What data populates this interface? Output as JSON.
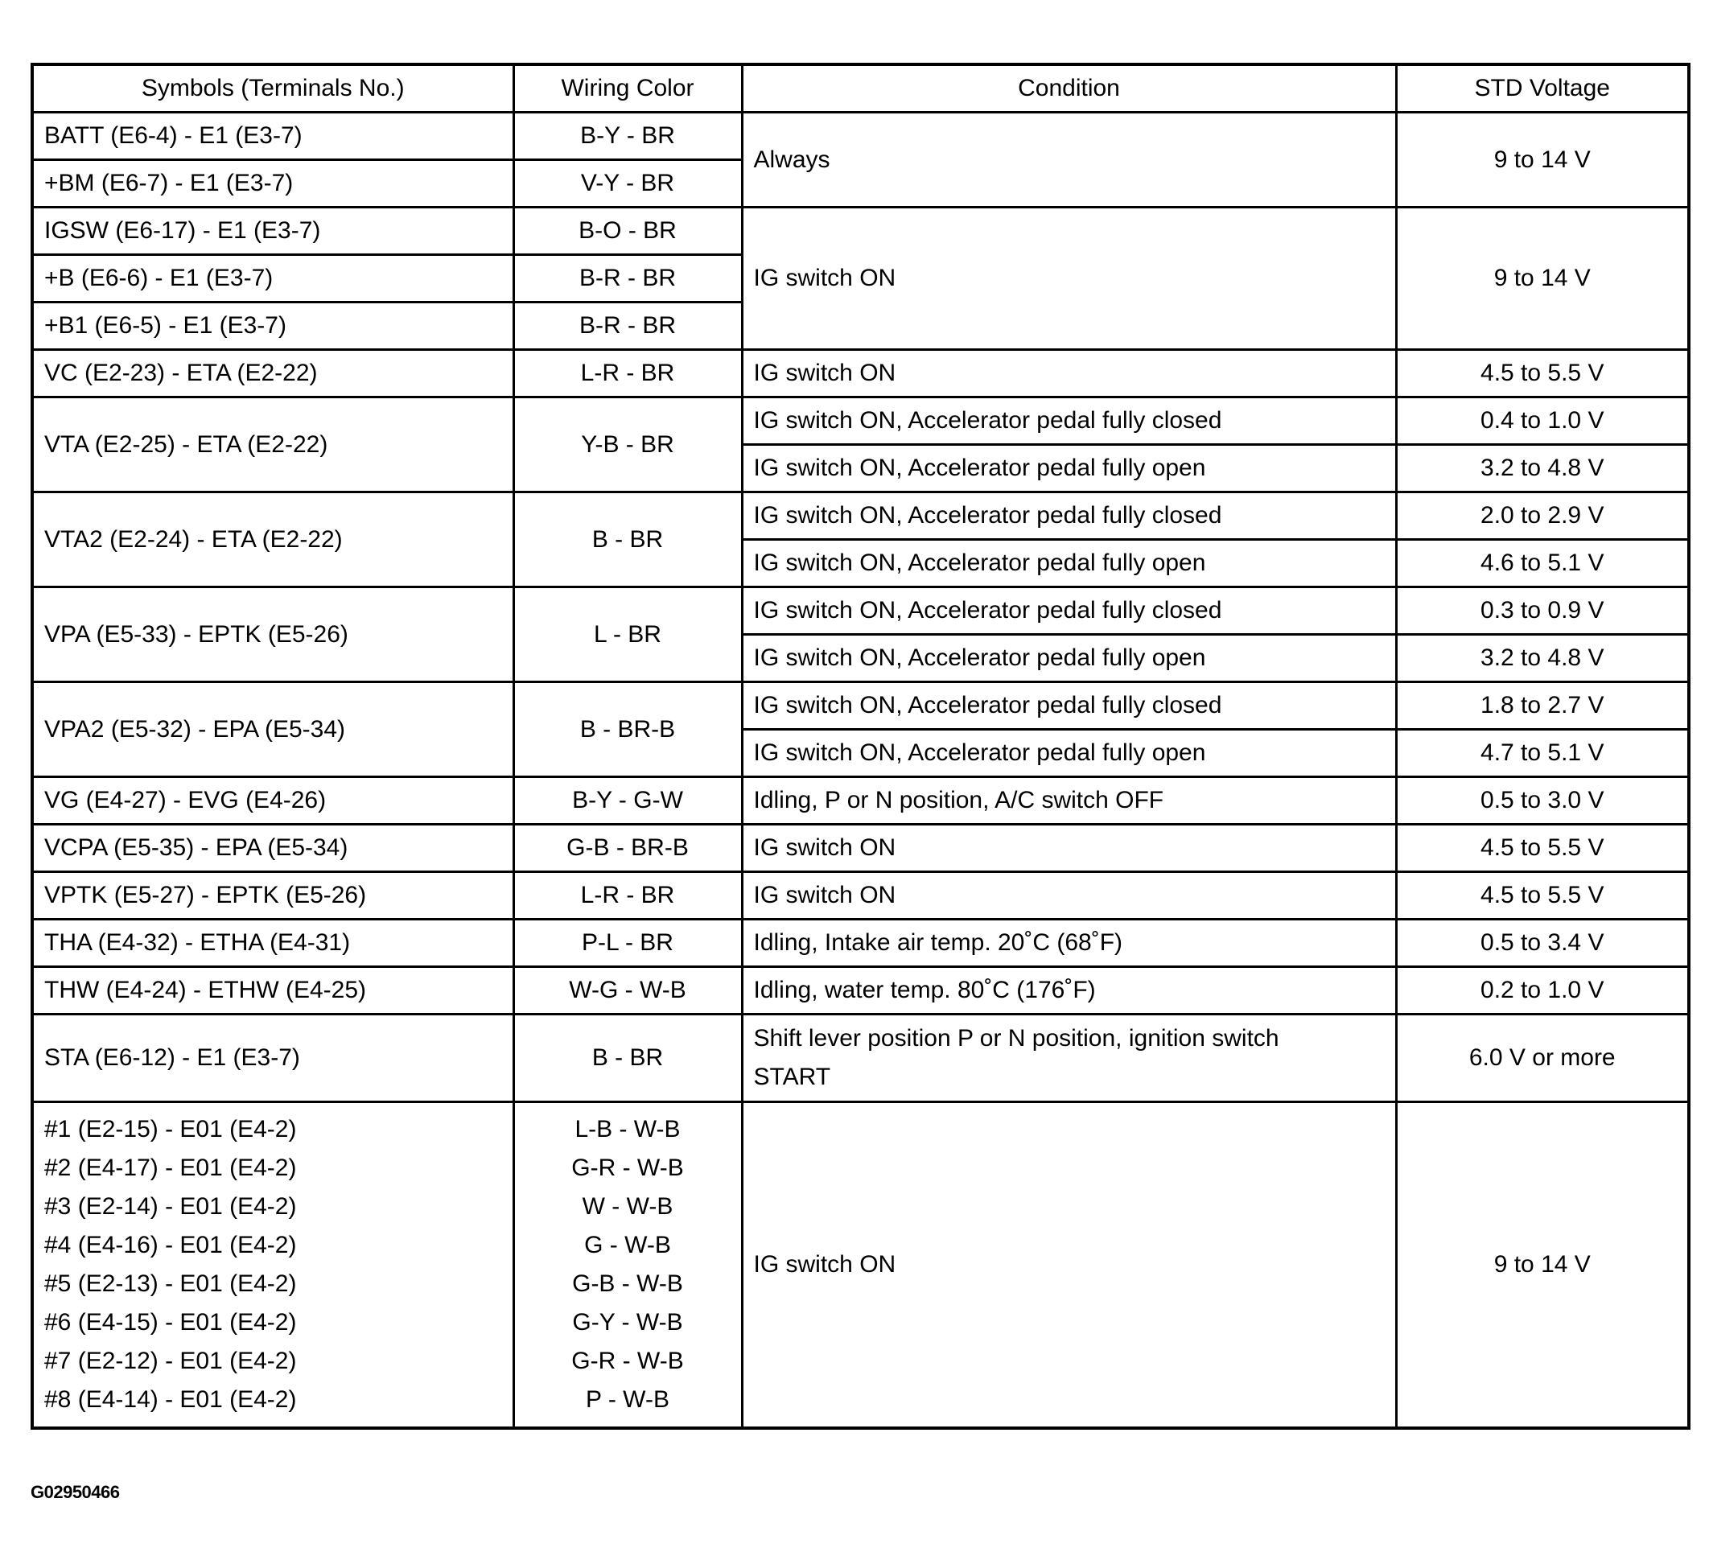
{
  "headers": [
    "Symbols (Terminals No.)",
    "Wiring Color",
    "Condition",
    "STD Voltage"
  ],
  "rows": {
    "batt": {
      "symbol": "BATT (E6-4) - E1 (E3-7)",
      "color": "B-Y  - BR"
    },
    "bm": {
      "symbol": "+BM (E6-7) - E1 (E3-7)",
      "color": "V-Y  - BR"
    },
    "always": {
      "condition": "Always",
      "voltage": "9 to 14 V"
    },
    "igsw": {
      "symbol": "IGSW (E6-17) - E1 (E3-7)",
      "color": "B-O  - BR"
    },
    "b": {
      "symbol": "+B (E6-6) - E1 (E3-7)",
      "color": "B-R  - BR"
    },
    "b1": {
      "symbol": "+B1 (E6-5) - E1 (E3-7)",
      "color": "B-R  - BR"
    },
    "ig_group": {
      "condition": "IG switch ON",
      "voltage": "9 to 14 V"
    },
    "vc": {
      "symbol": "VC (E2-23) - ETA (E2-22)",
      "color": "L-R  - BR",
      "condition": "IG switch ON",
      "voltage": "4.5 to 5.5 V"
    },
    "vta": {
      "symbol": "VTA (E2-25) - ETA (E2-22)",
      "color": "Y-B  - BR",
      "closed": "IG switch ON, Accelerator pedal fully closed",
      "closed_v": "0.4 to 1.0 V",
      "open": "IG switch ON, Accelerator pedal fully open",
      "open_v": "3.2 to 4.8 V"
    },
    "vta2": {
      "symbol": "VTA2 (E2-24) - ETA (E2-22)",
      "color": "B - BR",
      "closed": "IG switch ON, Accelerator pedal fully closed",
      "closed_v": "2.0 to 2.9 V",
      "open": "IG switch ON, Accelerator pedal fully open",
      "open_v": "4.6 to 5.1 V"
    },
    "vpa": {
      "symbol": "VPA (E5-33) - EPTK (E5-26)",
      "color": "L - BR",
      "closed": "IG switch ON, Accelerator pedal fully closed",
      "closed_v": "0.3 to 0.9 V",
      "open": "IG switch ON, Accelerator pedal fully open",
      "open_v": "3.2 to 4.8 V"
    },
    "vpa2": {
      "symbol": "VPA2 (E5-32) - EPA (E5-34)",
      "color": "B  -  BR-B",
      "closed": "IG switch ON, Accelerator pedal fully closed",
      "closed_v": "1.8 to 2.7 V",
      "open": "IG switch ON, Accelerator pedal fully open",
      "open_v": "4.7 to 5.1 V"
    },
    "vg": {
      "symbol": "VG (E4-27) - EVG (E4-26)",
      "color": "B-Y  -  G-W",
      "condition": "Idling, P or N position, A/C switch OFF",
      "voltage": "0.5 to 3.0 V"
    },
    "vcpa": {
      "symbol": "VCPA (E5-35) - EPA (E5-34)",
      "color": "G-B  -  BR-B",
      "condition": "IG switch ON",
      "voltage": "4.5 to 5.5 V"
    },
    "vptk": {
      "symbol": "VPTK (E5-27) - EPTK (E5-26)",
      "color": "L-R  -  BR",
      "condition": "IG switch ON",
      "voltage": "4.5 to 5.5 V"
    },
    "tha": {
      "symbol": "THA (E4-32) - ETHA (E4-31)",
      "color": "P-L  - BR",
      "condition": "Idling, Intake air temp. 20˚C (68˚F)",
      "voltage": "0.5 to 3.4 V"
    },
    "thw": {
      "symbol": "THW (E4-24) - ETHW (E4-25)",
      "color": "W-G  - W-B",
      "condition": "Idling, water temp. 80˚C (176˚F)",
      "voltage": "0.2 to 1.0 V"
    },
    "sta": {
      "symbol": "STA (E6-12) - E1 (E3-7)",
      "color": "B - BR",
      "condition": "Shift lever position P or N position, ignition switch START",
      "voltage": "6.0 V or more"
    },
    "injectors": {
      "symbols": [
        "#1 (E2-15) - E01 (E4-2)",
        "#2 (E4-17) - E01 (E4-2)",
        "#3 (E2-14) - E01 (E4-2)",
        "#4 (E4-16) - E01 (E4-2)",
        "#5 (E2-13) - E01 (E4-2)",
        "#6 (E4-15) - E01 (E4-2)",
        "#7 (E2-12) - E01 (E4-2)",
        "#8 (E4-14) - E01 (E4-2)"
      ],
      "colors": [
        "L-B  -  W-B",
        "G-R  -  W-B",
        "W  -  W-B",
        "G  -  W-B",
        "G-B  -  W-B",
        "G-Y  -  W-B",
        "G-R  -  W-B",
        "P  -  W-B"
      ],
      "condition": "IG switch ON",
      "voltage": "9 to 14 V"
    }
  },
  "figure_id": "G02950466"
}
